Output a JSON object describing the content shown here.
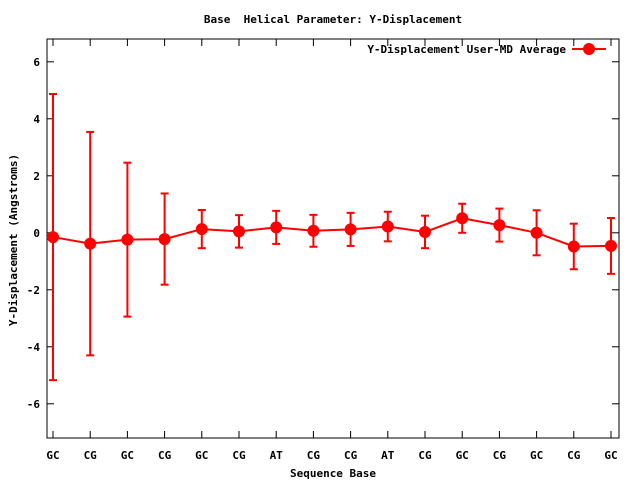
{
  "chart_data": {
    "type": "line",
    "title": "Base  Helical Parameter: Y-Displacement",
    "xlabel": "Sequence Base",
    "ylabel": "Y-Displacement (Angstroms)",
    "categories": [
      "GC",
      "CG",
      "GC",
      "CG",
      "GC",
      "CG",
      "AT",
      "CG",
      "CG",
      "AT",
      "CG",
      "GC",
      "CG",
      "GC",
      "CG",
      "GC"
    ],
    "ylim": [
      -7.2,
      6.8
    ],
    "yticks": [
      6,
      4,
      2,
      0,
      -2,
      -4,
      -6
    ],
    "ytick_labels": [
      "6",
      "4",
      "2",
      "0",
      "-2",
      "-4",
      "-6"
    ],
    "legend_position": "top-right",
    "grid": false,
    "series": [
      {
        "name": "Y-Displacement User-MD Average",
        "color": "#ff0000",
        "values": [
          -0.15,
          -0.38,
          -0.24,
          -0.22,
          0.13,
          0.05,
          0.19,
          0.07,
          0.12,
          0.22,
          0.03,
          0.51,
          0.27,
          0.0,
          -0.48,
          -0.46
        ],
        "error": [
          5.02,
          3.92,
          2.7,
          1.6,
          0.67,
          0.57,
          0.58,
          0.56,
          0.58,
          0.52,
          0.57,
          0.51,
          0.58,
          0.79,
          0.8,
          0.98
        ]
      }
    ]
  }
}
